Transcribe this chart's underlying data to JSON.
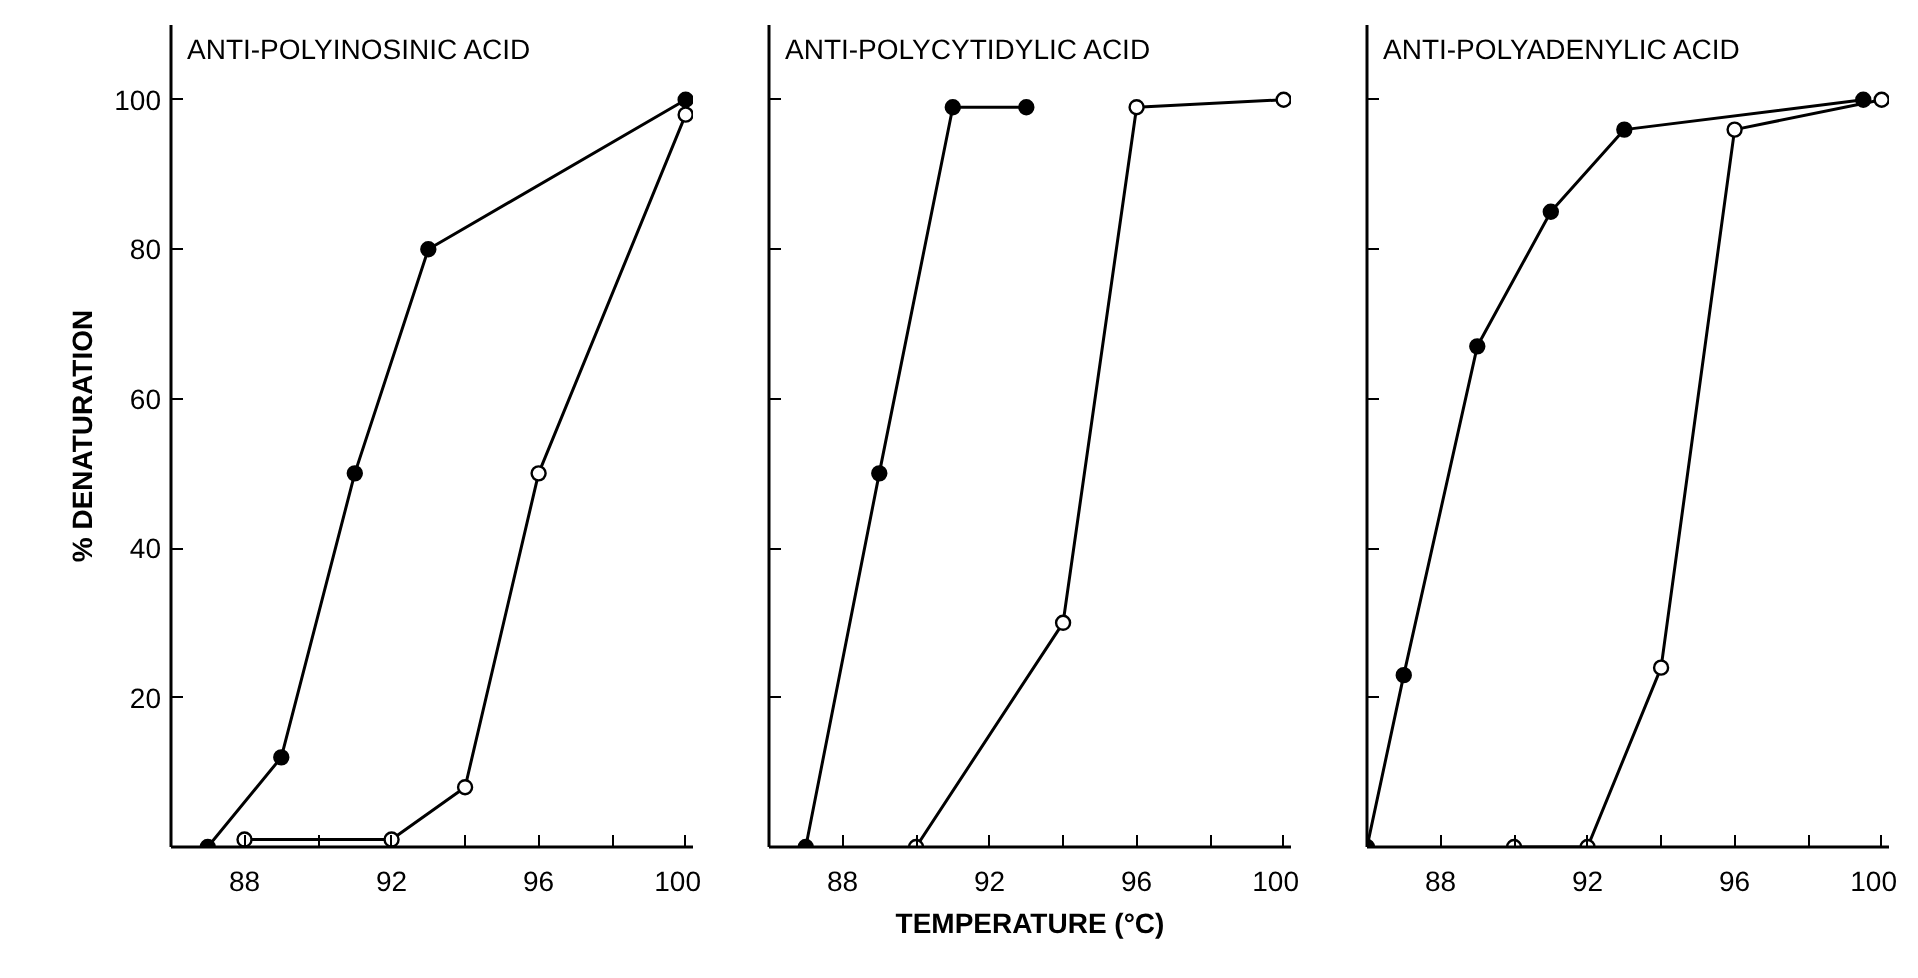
{
  "chart_data": [
    {
      "type": "line",
      "title": "ANTI-POLYINOSINIC ACID",
      "ylabel": "% DENATURATION",
      "marker": "circle",
      "grid": false,
      "xlim": [
        86,
        100.2
      ],
      "ylim": [
        0,
        110
      ],
      "xticks": [
        88,
        {
          "value": 90,
          "label": null
        },
        92,
        {
          "value": 94,
          "label": null
        },
        96,
        {
          "value": 98,
          "label": null
        },
        100
      ],
      "yticks": [
        20,
        40,
        60,
        80,
        100
      ],
      "series": [
        {
          "color": "#000000",
          "x": [
            87,
            89,
            91,
            93,
            100
          ],
          "values": [
            0,
            12,
            50,
            80,
            100
          ]
        },
        {
          "color": "#000000",
          "x": [
            88,
            92,
            94,
            96,
            100
          ],
          "values": [
            1,
            1,
            8,
            50,
            98
          ]
        }
      ]
    },
    {
      "type": "line",
      "title": "ANTI-POLYCYTIDYLIC ACID",
      "xlabel": "TEMPERATURE (°C)",
      "marker": "circle",
      "grid": false,
      "tick_labels": "x",
      "xlim": [
        86,
        100.2
      ],
      "ylim": [
        0,
        110
      ],
      "xticks": [
        88,
        {
          "value": 90,
          "label": null
        },
        92,
        {
          "value": 94,
          "label": null
        },
        96,
        {
          "value": 98,
          "label": null
        },
        100
      ],
      "yticks": [
        {
          "value": 20,
          "label": null
        },
        {
          "value": 40,
          "label": null
        },
        {
          "value": 60,
          "label": null
        },
        {
          "value": 80,
          "label": null
        },
        {
          "value": 100,
          "label": null
        }
      ],
      "series": [
        {
          "color": "#000000",
          "x": [
            87,
            89,
            91,
            93
          ],
          "values": [
            0,
            50,
            99,
            99
          ]
        },
        {
          "color": "#000000",
          "x": [
            90,
            94,
            96,
            100
          ],
          "values": [
            0,
            30,
            99,
            100
          ]
        }
      ]
    },
    {
      "type": "line",
      "title": "ANTI-POLYADENYLIC ACID",
      "marker": "circle",
      "grid": false,
      "tick_labels": "x",
      "xlim": [
        86,
        100.2
      ],
      "ylim": [
        0,
        110
      ],
      "xticks": [
        88,
        {
          "value": 90,
          "label": null
        },
        92,
        {
          "value": 94,
          "label": null
        },
        96,
        {
          "value": 98,
          "label": null
        },
        100
      ],
      "yticks": [
        {
          "value": 20,
          "label": null
        },
        {
          "value": 40,
          "label": null
        },
        {
          "value": 60,
          "label": null
        },
        {
          "value": 80,
          "label": null
        },
        {
          "value": 100,
          "label": null
        }
      ],
      "series": [
        {
          "color": "#000000",
          "x": [
            86,
            87,
            89,
            91,
            93,
            99.5
          ],
          "values": [
            0,
            23,
            67,
            85,
            96,
            100
          ]
        },
        {
          "color": "#000000",
          "x": [
            90,
            92,
            94,
            96,
            100
          ],
          "values": [
            0,
            0,
            24,
            96,
            100
          ]
        }
      ]
    }
  ]
}
